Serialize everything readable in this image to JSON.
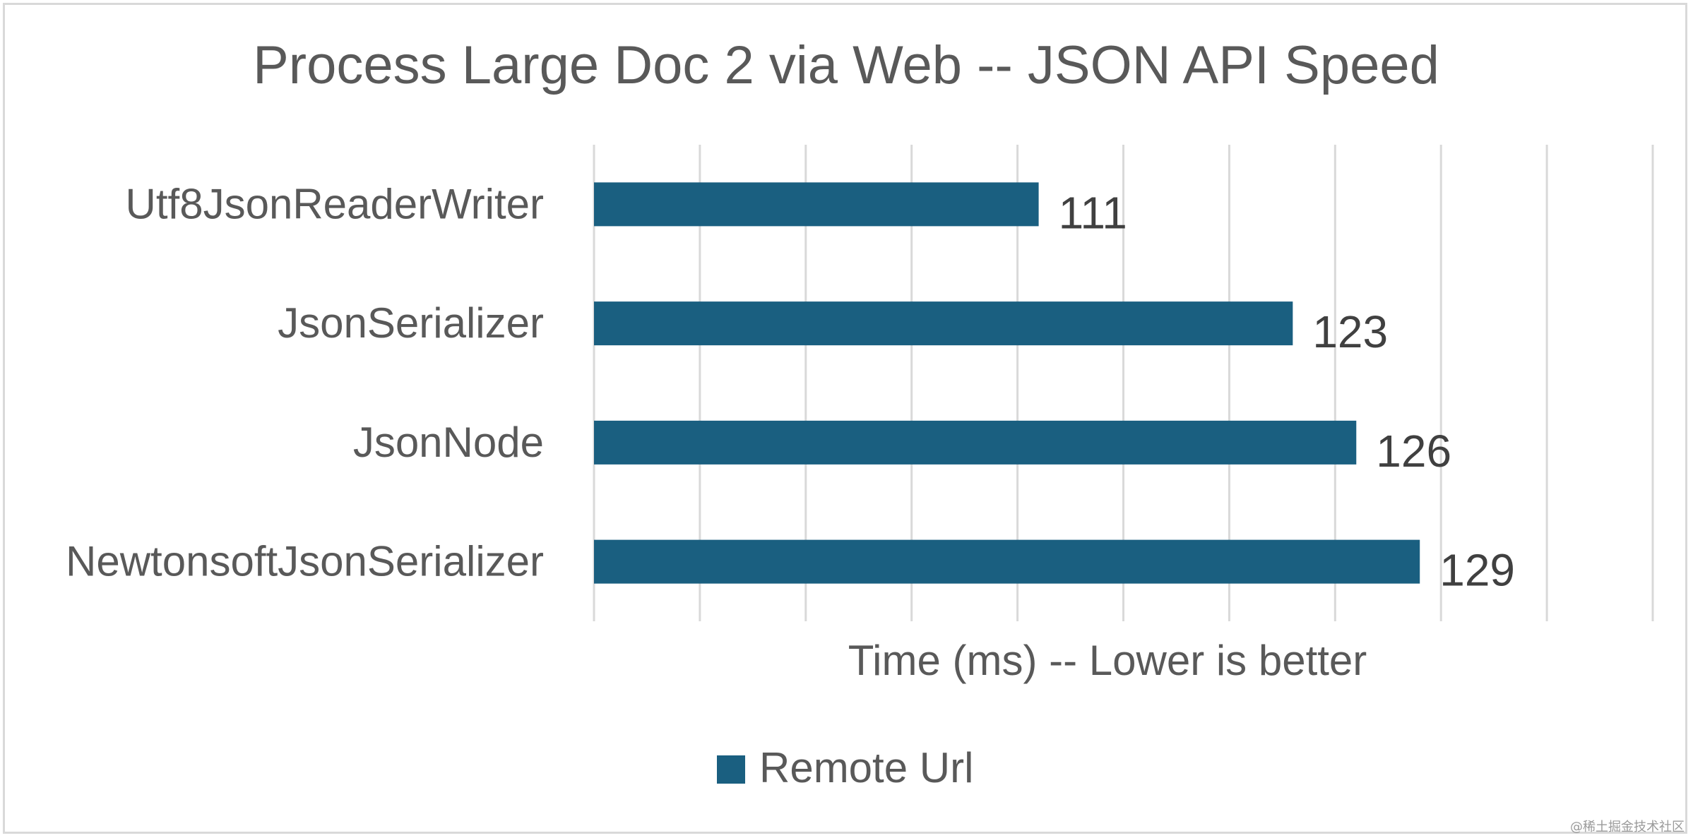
{
  "chart_data": {
    "type": "bar",
    "orientation": "horizontal",
    "title": "Process Large Doc 2 via Web -- JSON API Speed",
    "xlabel": "Time (ms) -- Lower is better",
    "ylabel": "",
    "categories": [
      "Utf8JsonReaderWriter",
      "JsonSerializer",
      "JsonNode",
      "NewtonsoftJsonSerializer"
    ],
    "series": [
      {
        "name": "Remote Url",
        "values": [
          111,
          123,
          126,
          129
        ],
        "color": "#1a5f80"
      }
    ],
    "xlim": [
      90,
      140
    ],
    "grid": true,
    "data_labels": true,
    "legend_position": "bottom",
    "axis_tick_labels_visible": false
  },
  "watermark": "@稀土掘金技术社区"
}
